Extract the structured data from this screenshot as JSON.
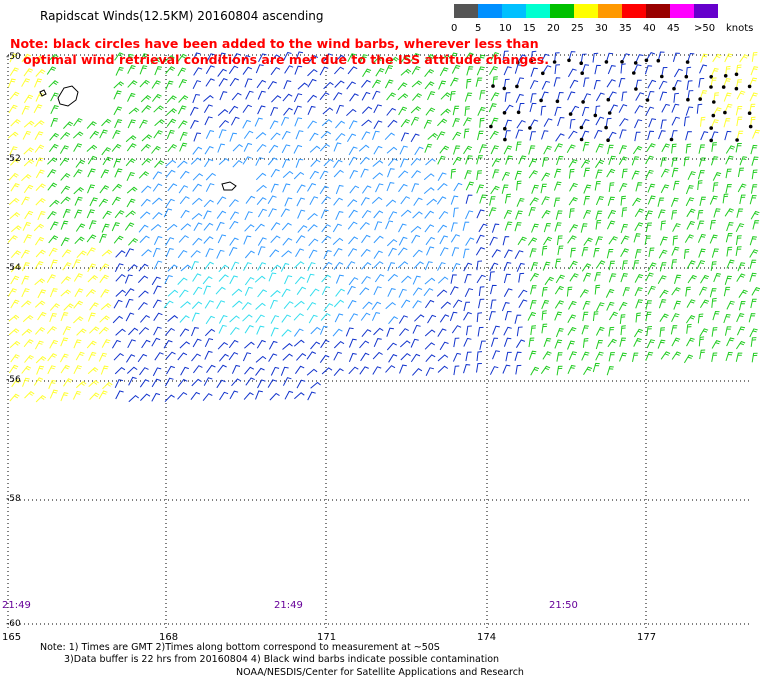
{
  "title": "Rapidscat Winds(12.5KM) 20160804  ascending",
  "note": {
    "line1": "Note: black circles have been added to the wind barbs, wherever less than",
    "line2": "optimal wind retrieval conditions are met due to the ISS attitude changes."
  },
  "speed_scale": {
    "labels": [
      "0",
      "5",
      "10",
      "15",
      "20",
      "25",
      "30",
      "35",
      "40",
      "45",
      ">50"
    ],
    "unit": "knots",
    "colors": [
      "#555555",
      "#0090ff",
      "#00c0ff",
      "#00ffd0",
      "#00c000",
      "#ffff00",
      "#ff9900",
      "#ff0000",
      "#990000",
      "#ff00ff",
      "#6600cc"
    ]
  },
  "lat_labels": [
    "-50",
    "-52",
    "-54",
    "-56",
    "-58",
    "-60"
  ],
  "lon_labels": [
    "165",
    "168",
    "171",
    "174",
    "177"
  ],
  "time_labels": [
    "21:49",
    "21:49",
    "21:50"
  ],
  "footer": {
    "line1": "Note: 1) Times are GMT 2)Times along bottom correspond to measurement at ~50S",
    "line2": "3)Data buffer is 22 hrs from 20160804 4) Black wind barbs indicate possible contamination",
    "line3": "NOAA/NESDIS/Center for Satellite Applications and Research"
  },
  "colors": {
    "barb_yellow": "#ffff33",
    "barb_green": "#22cc22",
    "barb_blue": "#1133cc",
    "barb_skyblue": "#3399ff",
    "barb_cyan": "#33ddee",
    "barb_black": "#000000",
    "note_red": "#ff0000",
    "time_purple": "#660099"
  }
}
